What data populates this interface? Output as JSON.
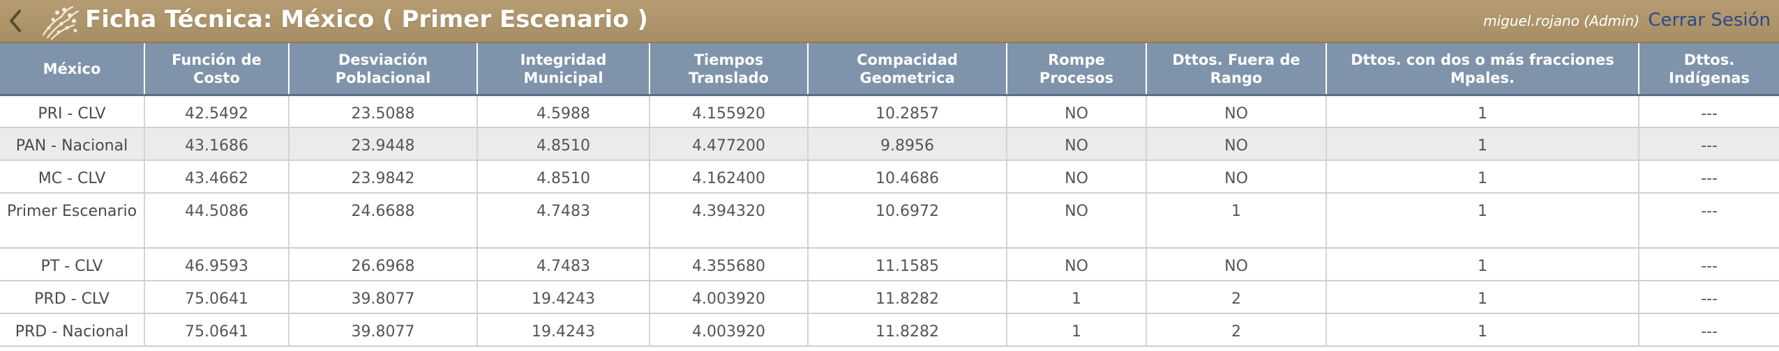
{
  "header": {
    "title": "Ficha Técnica: México ( Primer Escenario )",
    "user": "miguel.rojano (Admin)",
    "logout_label": "Cerrar Sesión",
    "back_icon": "chevron-left-icon",
    "logo_icon": "crest-logo-icon",
    "colors": {
      "bar": "#ae9467",
      "header_row": "#7f93ab",
      "logout_link": "#2c4a8a"
    }
  },
  "table": {
    "columns": [
      "México",
      "Función de Costo",
      "Desviación Poblacional",
      "Integridad Municipal",
      "Tiempos Translado",
      "Compacidad Geometrica",
      "Rompe Procesos",
      "Dttos. Fuera de Rango",
      "Dttos. con dos o más fracciones Mpales.",
      "Dttos. Indígenas"
    ],
    "rows": [
      [
        "PRI - CLV",
        "42.5492",
        "23.5088",
        "4.5988",
        "4.155920",
        "10.2857",
        "NO",
        "NO",
        "1",
        "---"
      ],
      [
        "PAN - Nacional",
        "43.1686",
        "23.9448",
        "4.8510",
        "4.477200",
        "9.8956",
        "NO",
        "NO",
        "1",
        "---"
      ],
      [
        "MC - CLV",
        "43.4662",
        "23.9842",
        "4.8510",
        "4.162400",
        "10.4686",
        "NO",
        "NO",
        "1",
        "---"
      ],
      [
        "Primer Escenario",
        "44.5086",
        "24.6688",
        "4.7483",
        "4.394320",
        "10.6972",
        "NO",
        "1",
        "1",
        "---"
      ],
      [
        "PT - CLV",
        "46.9593",
        "26.6968",
        "4.7483",
        "4.355680",
        "11.1585",
        "NO",
        "NO",
        "1",
        "---"
      ],
      [
        "PRD - CLV",
        "75.0641",
        "39.8077",
        "19.4243",
        "4.003920",
        "11.8282",
        "1",
        "2",
        "1",
        "---"
      ],
      [
        "PRD - Nacional",
        "75.0641",
        "39.8077",
        "19.4243",
        "4.003920",
        "11.8282",
        "1",
        "2",
        "1",
        "---"
      ]
    ]
  }
}
